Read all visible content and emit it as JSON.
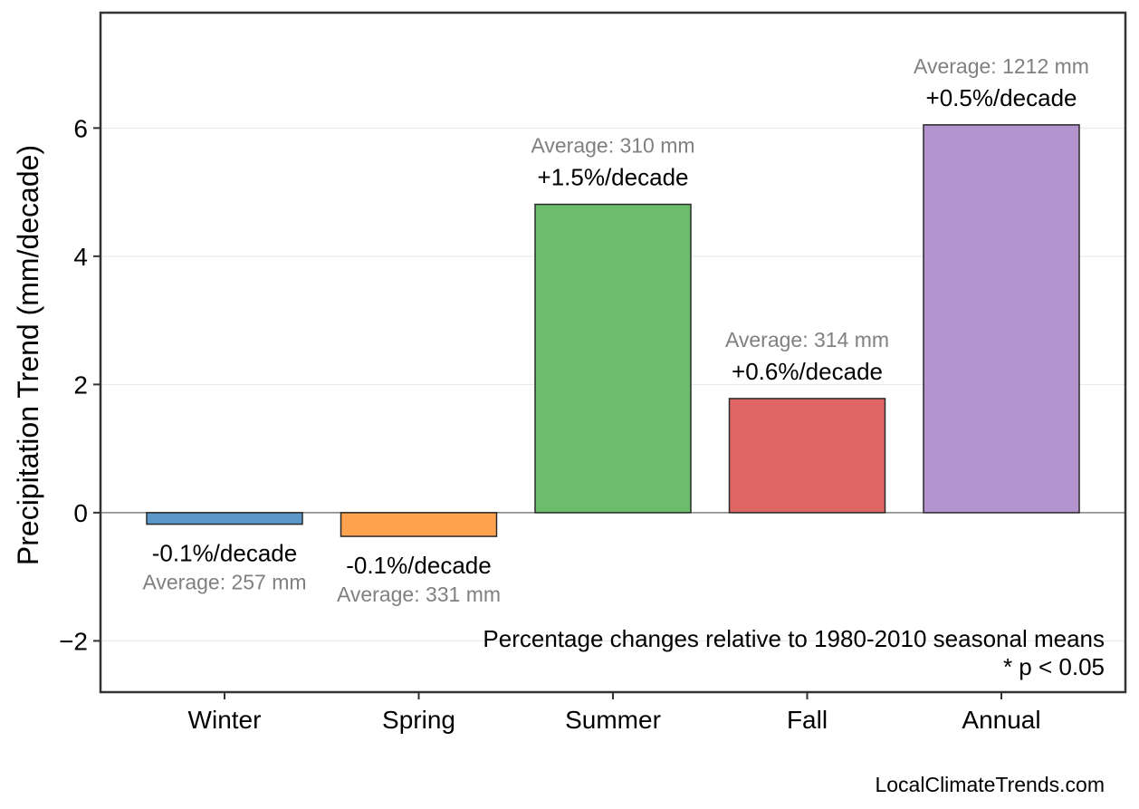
{
  "chart_data": {
    "type": "bar",
    "categories": [
      "Winter",
      "Spring",
      "Summer",
      "Fall",
      "Annual"
    ],
    "values": [
      -0.18,
      -0.37,
      4.81,
      1.78,
      6.05
    ],
    "colors": [
      "#5b97c9",
      "#fea24f",
      "#6bbd6b",
      "#e06666",
      "#b394ce"
    ],
    "bar_labels": [
      "-0.1%/decade",
      "-0.1%/decade",
      "+1.5%/decade",
      "+0.6%/decade",
      "+0.5%/decade"
    ],
    "average_labels": [
      "Average: 257 mm",
      "Average: 331 mm",
      "Average: 310 mm",
      "Average: 314 mm",
      "Average: 1212 mm"
    ],
    "xlabel": "",
    "ylabel": "Precipitation Trend (mm/decade)",
    "ylim": [
      -2.8,
      7.8
    ],
    "yticks": [
      -2,
      0,
      2,
      4,
      6
    ],
    "ytick_labels": [
      "−2",
      "0",
      "2",
      "4",
      "6"
    ],
    "grid": true,
    "notes": [
      "Percentage changes relative to 1980-2010 seasonal means",
      "* p < 0.05"
    ]
  },
  "footer": {
    "credit": "LocalClimateTrends.com"
  }
}
